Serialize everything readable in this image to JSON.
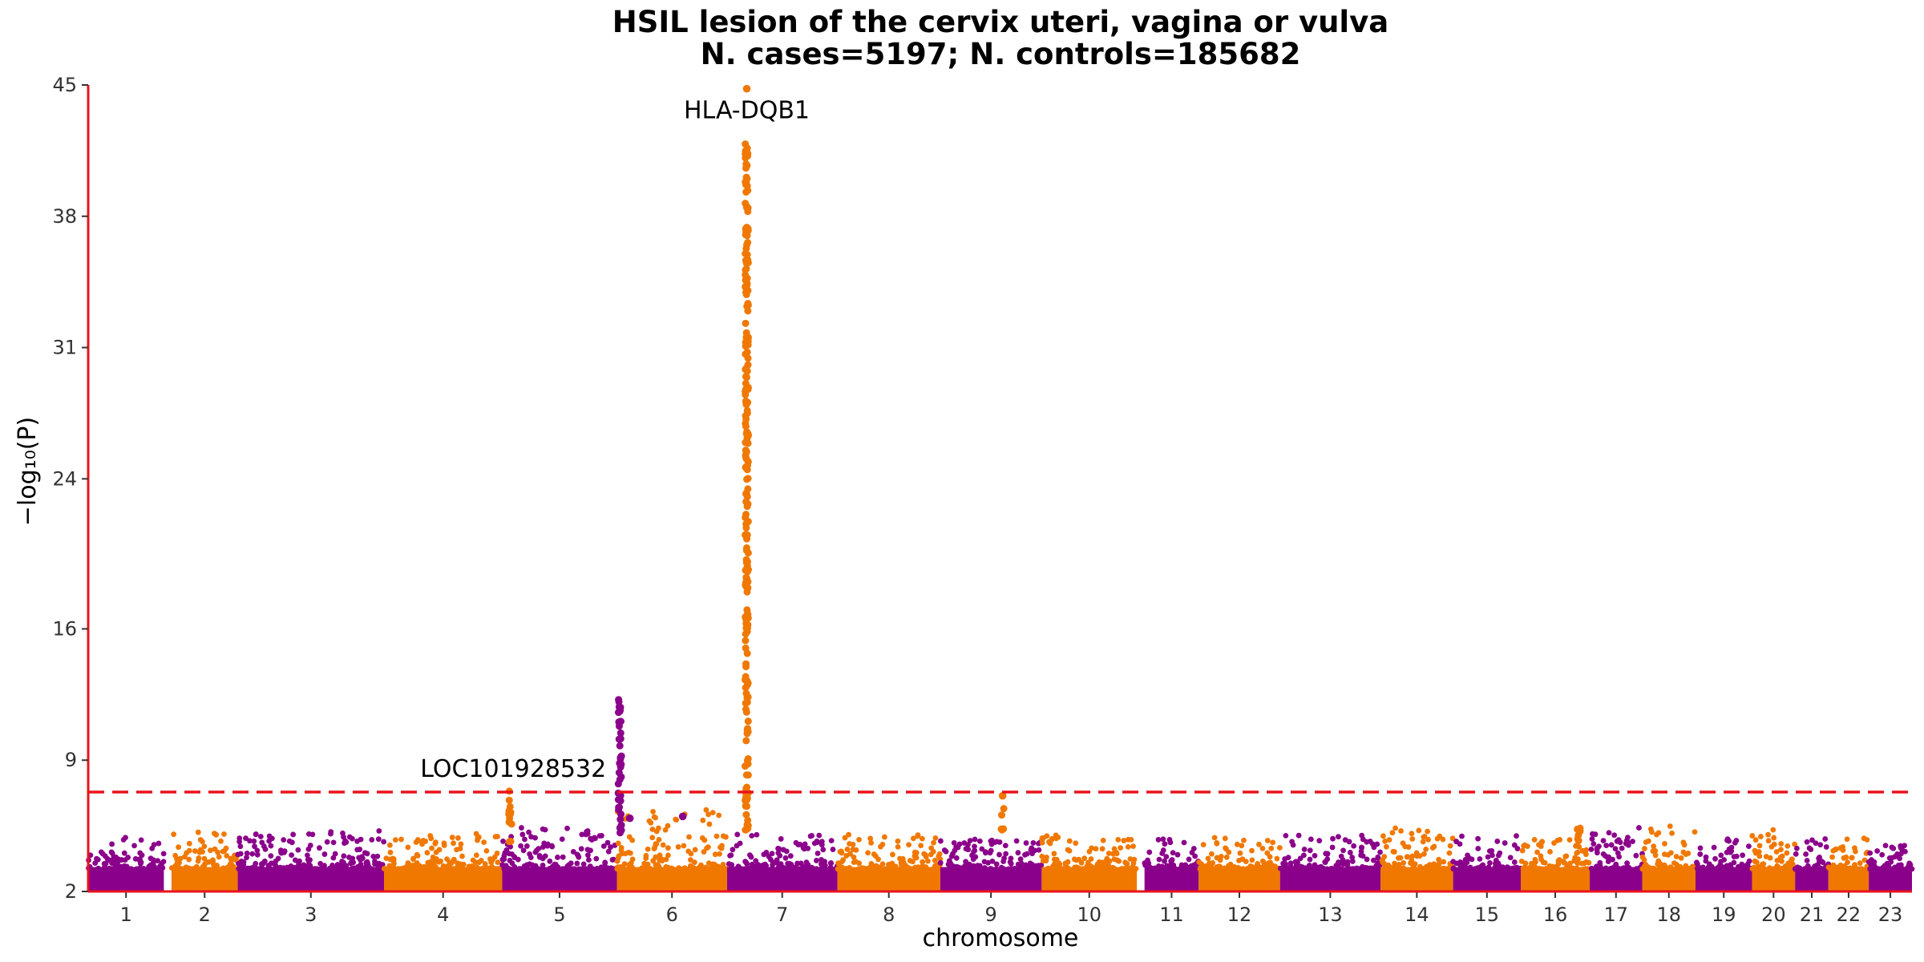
{
  "chart_data": {
    "type": "scatter",
    "title_line1": "HSIL lesion of the cervix uteri, vagina or vulva",
    "title_line2": "N. cases=5197; N. controls=185682",
    "xlabel": "chromosome",
    "ylabel": "−log₁₀(P)",
    "ylim": [
      2,
      45
    ],
    "y_ticks": [
      2,
      9,
      16,
      24,
      31,
      38,
      45
    ],
    "significance_threshold": 7.3,
    "colors": {
      "odd": "#8B008B",
      "even": "#F07800",
      "threshold": "#E8141C",
      "axis": "#E8141C"
    },
    "chromosomes": [
      {
        "label": "1",
        "start": 0,
        "end": 0.0415,
        "peak": 4.9
      },
      {
        "label": "2",
        "start": 0.0457,
        "end": 0.082,
        "peak": 5.2
      },
      {
        "label": "3",
        "start": 0.082,
        "end": 0.1622,
        "peak": 5.3
      },
      {
        "label": "4",
        "start": 0.1622,
        "end": 0.227,
        "peak": 5.1
      },
      {
        "label": "5",
        "start": 0.227,
        "end": 0.2899,
        "peak": 5.4
      },
      {
        "label": "6",
        "start": 0.2899,
        "end": 0.3503,
        "peak": 6.4
      },
      {
        "label": "7",
        "start": 0.3503,
        "end": 0.4108,
        "peak": 5.1
      },
      {
        "label": "8",
        "start": 0.4108,
        "end": 0.4672,
        "peak": 5.1
      },
      {
        "label": "9",
        "start": 0.4672,
        "end": 0.5228,
        "peak": 4.8
      },
      {
        "label": "10",
        "start": 0.5228,
        "end": 0.575,
        "peak": 5.0
      },
      {
        "label": "11",
        "start": 0.5792,
        "end": 0.6089,
        "peak": 4.9
      },
      {
        "label": "12",
        "start": 0.6089,
        "end": 0.6535,
        "peak": 5.0
      },
      {
        "label": "13",
        "start": 0.6535,
        "end": 0.7086,
        "peak": 5.0
      },
      {
        "label": "14",
        "start": 0.7086,
        "end": 0.7484,
        "peak": 5.4
      },
      {
        "label": "15",
        "start": 0.7484,
        "end": 0.7855,
        "peak": 5.1
      },
      {
        "label": "16",
        "start": 0.7855,
        "end": 0.8233,
        "peak": 4.8
      },
      {
        "label": "17",
        "start": 0.8233,
        "end": 0.8521,
        "peak": 5.4
      },
      {
        "label": "18",
        "start": 0.8521,
        "end": 0.8813,
        "peak": 5.5
      },
      {
        "label": "19",
        "start": 0.8813,
        "end": 0.9123,
        "peak": 4.9
      },
      {
        "label": "20",
        "start": 0.9123,
        "end": 0.9359,
        "peak": 5.3
      },
      {
        "label": "21",
        "start": 0.9359,
        "end": 0.9542,
        "peak": 5.0
      },
      {
        "label": "22",
        "start": 0.9542,
        "end": 0.9763,
        "peak": 4.9
      },
      {
        "label": "23",
        "start": 0.9763,
        "end": 1.0,
        "peak": 4.6
      }
    ],
    "signal_columns": [
      {
        "chrom": "4",
        "x": 0.2313,
        "ymin": 4.2,
        "ymax": 7.4,
        "n": 14
      },
      {
        "chrom": "5",
        "x": 0.2915,
        "ymin": 5.0,
        "ymax": 12.5,
        "n": 40
      },
      {
        "chrom": "6",
        "x": 0.3611,
        "ymin": 5.0,
        "ymax": 42.0,
        "n": 220
      },
      {
        "chrom": "8",
        "x": 0.5014,
        "ymin": 5.2,
        "ymax": 6.7,
        "n": 5
      },
      {
        "chrom": "16",
        "x": 0.8172,
        "ymin": 4.6,
        "ymax": 5.6,
        "n": 6
      }
    ],
    "extra_points": [
      {
        "chrom": "6",
        "x": 0.3611,
        "y": 44.8
      },
      {
        "chrom": "6",
        "x": 0.3611,
        "y": 38.5
      },
      {
        "chrom": "6",
        "x": 0.3611,
        "y": 35.5
      },
      {
        "chrom": "5",
        "x": 0.297,
        "y": 5.9
      },
      {
        "chrom": "5",
        "x": 0.326,
        "y": 6.0
      },
      {
        "chrom": "8",
        "x": 0.5014,
        "y": 7.1
      }
    ],
    "annotations": [
      {
        "text": "HLA-DQB1",
        "x": 0.3611,
        "y": 44.8
      },
      {
        "text": "LOC101928532",
        "x": 0.2313,
        "y": 7.6
      }
    ]
  }
}
